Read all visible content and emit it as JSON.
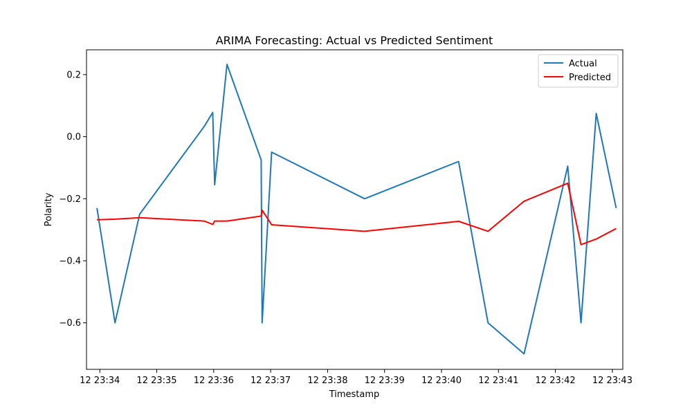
{
  "chart_data": {
    "type": "line",
    "title": "ARIMA Forecasting: Actual vs Predicted Sentiment",
    "xlabel": "Timestamp",
    "ylabel": "Polarity",
    "x_axis": {
      "type": "time",
      "min": "23:33:46",
      "max": "23:43:11",
      "ticks": [
        "12 23:34",
        "12 23:35",
        "12 23:36",
        "12 23:37",
        "12 23:38",
        "12 23:39",
        "12 23:40",
        "12 23:41",
        "12 23:42",
        "12 23:43"
      ]
    },
    "y_axis": {
      "min": -0.75,
      "max": 0.28,
      "ticks": [
        "0.2",
        "0.0",
        "−0.2",
        "−0.4",
        "−0.6"
      ]
    },
    "grid": false,
    "legend": "top-right",
    "series": [
      {
        "name": "Actual",
        "color": "#1f77b4",
        "points": [
          {
            "t": "23:33:57",
            "y": -0.23
          },
          {
            "t": "23:34:16",
            "y": -0.6
          },
          {
            "t": "23:34:42",
            "y": -0.25
          },
          {
            "t": "23:35:50",
            "y": 0.033
          },
          {
            "t": "23:35:59",
            "y": 0.078
          },
          {
            "t": "23:36:01",
            "y": -0.155
          },
          {
            "t": "23:36:14",
            "y": 0.233
          },
          {
            "t": "23:36:50",
            "y": -0.075
          },
          {
            "t": "23:36:51",
            "y": -0.6
          },
          {
            "t": "23:37:01",
            "y": -0.05
          },
          {
            "t": "23:38:39",
            "y": -0.2
          },
          {
            "t": "23:40:18",
            "y": -0.08
          },
          {
            "t": "23:40:49",
            "y": -0.6
          },
          {
            "t": "23:41:27",
            "y": -0.7
          },
          {
            "t": "23:42:13",
            "y": -0.095
          },
          {
            "t": "23:42:27",
            "y": -0.6
          },
          {
            "t": "23:42:43",
            "y": 0.075
          },
          {
            "t": "23:43:04",
            "y": -0.23
          }
        ]
      },
      {
        "name": "Predicted",
        "color": "#ff0000",
        "points": [
          {
            "t": "23:33:57",
            "y": -0.268
          },
          {
            "t": "23:34:16",
            "y": -0.266
          },
          {
            "t": "23:34:42",
            "y": -0.261
          },
          {
            "t": "23:35:50",
            "y": -0.272
          },
          {
            "t": "23:35:59",
            "y": -0.283
          },
          {
            "t": "23:36:01",
            "y": -0.272
          },
          {
            "t": "23:36:14",
            "y": -0.272
          },
          {
            "t": "23:36:50",
            "y": -0.256
          },
          {
            "t": "23:36:51",
            "y": -0.237
          },
          {
            "t": "23:37:01",
            "y": -0.284
          },
          {
            "t": "23:38:39",
            "y": -0.305
          },
          {
            "t": "23:40:18",
            "y": -0.273
          },
          {
            "t": "23:40:49",
            "y": -0.305
          },
          {
            "t": "23:41:27",
            "y": -0.208
          },
          {
            "t": "23:42:13",
            "y": -0.15
          },
          {
            "t": "23:42:27",
            "y": -0.348
          },
          {
            "t": "23:42:43",
            "y": -0.33
          },
          {
            "t": "23:43:04",
            "y": -0.296
          }
        ]
      }
    ]
  }
}
